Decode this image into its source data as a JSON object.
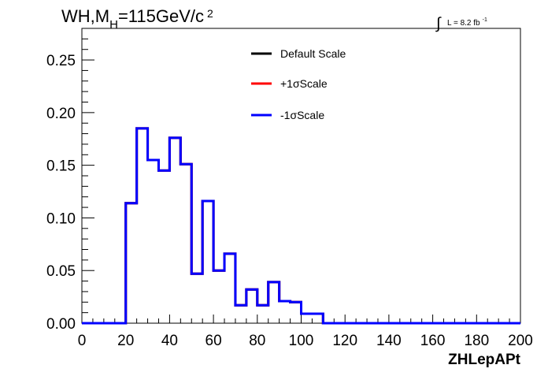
{
  "chart_data": {
    "type": "histogram",
    "title_parts": {
      "main": "WH,M",
      "subscript": "H",
      "rest": "=115GeV/c",
      "superscript": "2"
    },
    "luminosity": {
      "symbol": "∫",
      "text": "L = 8.2 fb",
      "superscript": "-1"
    },
    "xlabel": "ZHLepAPt",
    "ylabel": "",
    "xlim": [
      0,
      200
    ],
    "ylim": [
      0,
      0.28
    ],
    "x_ticks": [
      0,
      20,
      40,
      60,
      80,
      100,
      120,
      140,
      160,
      180,
      200
    ],
    "x_tick_labels": [
      "0",
      "20",
      "40",
      "60",
      "80",
      "100",
      "120",
      "140",
      "160",
      "180",
      "200"
    ],
    "y_ticks": [
      0,
      0.05,
      0.1,
      0.15,
      0.2,
      0.25
    ],
    "y_tick_labels": [
      "0.00",
      "0.05",
      "0.10",
      "0.15",
      "0.20",
      "0.25"
    ],
    "grid": false,
    "legend_position": "top-center",
    "bin_edges": [
      0,
      5,
      10,
      15,
      20,
      25,
      30,
      35,
      40,
      45,
      50,
      55,
      60,
      65,
      70,
      75,
      80,
      85,
      90,
      95,
      100,
      105,
      110,
      115,
      120,
      125,
      130,
      135,
      140,
      145,
      150,
      155,
      160,
      165,
      170,
      175,
      180,
      185,
      190,
      195,
      200
    ],
    "series": [
      {
        "name": "Default Scale",
        "color": "#000000",
        "values": [
          0,
          0,
          0,
          0,
          0.114,
          0.185,
          0.155,
          0.145,
          0.176,
          0.151,
          0.047,
          0.116,
          0.05,
          0.066,
          0.017,
          0.032,
          0.017,
          0.039,
          0.021,
          0.02,
          0.009,
          0.009,
          0,
          0,
          0,
          0,
          0,
          0,
          0,
          0,
          0,
          0,
          0,
          0,
          0,
          0,
          0,
          0,
          0,
          0
        ]
      },
      {
        "name": "+1σScale",
        "color": "#ff0000",
        "values": [
          0,
          0,
          0,
          0,
          0.114,
          0.185,
          0.155,
          0.145,
          0.176,
          0.151,
          0.047,
          0.116,
          0.05,
          0.066,
          0.017,
          0.032,
          0.017,
          0.039,
          0.021,
          0.02,
          0.009,
          0.009,
          0,
          0,
          0,
          0,
          0,
          0,
          0,
          0,
          0,
          0,
          0,
          0,
          0,
          0,
          0,
          0,
          0,
          0
        ]
      },
      {
        "name": "-1σScale",
        "color": "#0000ff",
        "values": [
          0,
          0,
          0,
          0,
          0.114,
          0.185,
          0.155,
          0.145,
          0.176,
          0.151,
          0.047,
          0.116,
          0.05,
          0.066,
          0.017,
          0.032,
          0.017,
          0.039,
          0.021,
          0.02,
          0.009,
          0.009,
          0,
          0,
          0,
          0,
          0,
          0,
          0,
          0,
          0,
          0,
          0,
          0,
          0,
          0,
          0,
          0,
          0,
          0
        ]
      }
    ]
  }
}
